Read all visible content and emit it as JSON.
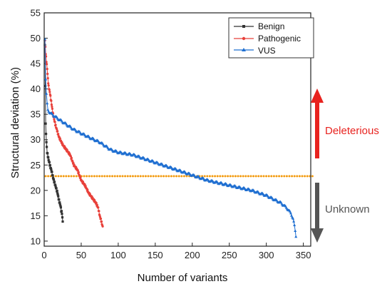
{
  "chart_data": {
    "type": "scatter",
    "xlabel": "Number of variants",
    "ylabel": "Structural deviation (%)",
    "xlim": [
      0,
      360
    ],
    "ylim": [
      9,
      55
    ],
    "xticks": [
      0,
      50,
      100,
      150,
      200,
      250,
      300,
      350
    ],
    "yticks": [
      10,
      15,
      20,
      25,
      30,
      35,
      40,
      45,
      50,
      55
    ],
    "grid": false,
    "legend_position": "top-right",
    "threshold": {
      "y": 22.8,
      "color": "#f39c12"
    },
    "series": [
      {
        "name": "Benign",
        "color": "#333333",
        "marker": "square",
        "anchors": [
          [
            1,
            48.5
          ],
          [
            2,
            33
          ],
          [
            3,
            29.5
          ],
          [
            4,
            27.5
          ],
          [
            6,
            26
          ],
          [
            8,
            24.8
          ],
          [
            10,
            23.8
          ],
          [
            12,
            22.5
          ],
          [
            14,
            21.5
          ],
          [
            16,
            20.5
          ],
          [
            18,
            19.5
          ],
          [
            20,
            18
          ],
          [
            22,
            17
          ],
          [
            23,
            16
          ],
          [
            24,
            15.5
          ],
          [
            25,
            13.8
          ]
        ]
      },
      {
        "name": "Pathogenic",
        "color": "#e8403a",
        "marker": "circle",
        "anchors": [
          [
            1,
            49.5
          ],
          [
            2,
            47
          ],
          [
            4,
            44
          ],
          [
            5,
            42
          ],
          [
            6,
            40.5
          ],
          [
            8,
            39
          ],
          [
            10,
            37
          ],
          [
            12,
            35
          ],
          [
            15,
            33
          ],
          [
            18,
            31.5
          ],
          [
            20,
            30.5
          ],
          [
            25,
            29
          ],
          [
            30,
            28
          ],
          [
            35,
            27
          ],
          [
            40,
            25
          ],
          [
            45,
            24
          ],
          [
            50,
            22
          ],
          [
            55,
            21
          ],
          [
            60,
            19.5
          ],
          [
            65,
            18.5
          ],
          [
            70,
            17.5
          ],
          [
            73,
            16.5
          ],
          [
            75,
            15
          ],
          [
            77,
            14
          ],
          [
            79,
            12.8
          ]
        ]
      },
      {
        "name": "VUS",
        "color": "#1f6fd1",
        "marker": "triangle",
        "anchors": [
          [
            1,
            50
          ],
          [
            2,
            42
          ],
          [
            3,
            39
          ],
          [
            4,
            37
          ],
          [
            5,
            35.8
          ],
          [
            8,
            35.3
          ],
          [
            15,
            34.5
          ],
          [
            30,
            33
          ],
          [
            40,
            32
          ],
          [
            60,
            30.5
          ],
          [
            75,
            29.5
          ],
          [
            90,
            28
          ],
          [
            100,
            27.5
          ],
          [
            120,
            27
          ],
          [
            150,
            25.5
          ],
          [
            180,
            24
          ],
          [
            200,
            23
          ],
          [
            220,
            22
          ],
          [
            250,
            21
          ],
          [
            280,
            20
          ],
          [
            300,
            19
          ],
          [
            320,
            17.5
          ],
          [
            328,
            16.5
          ],
          [
            333,
            15.5
          ],
          [
            336,
            14.5
          ],
          [
            338,
            13
          ],
          [
            340,
            11
          ]
        ]
      }
    ],
    "annotations": [
      {
        "text": "Deleterious",
        "color": "#e8231f",
        "arrow": "up"
      },
      {
        "text": "Unknown",
        "color": "#555555",
        "arrow": "down"
      }
    ]
  }
}
